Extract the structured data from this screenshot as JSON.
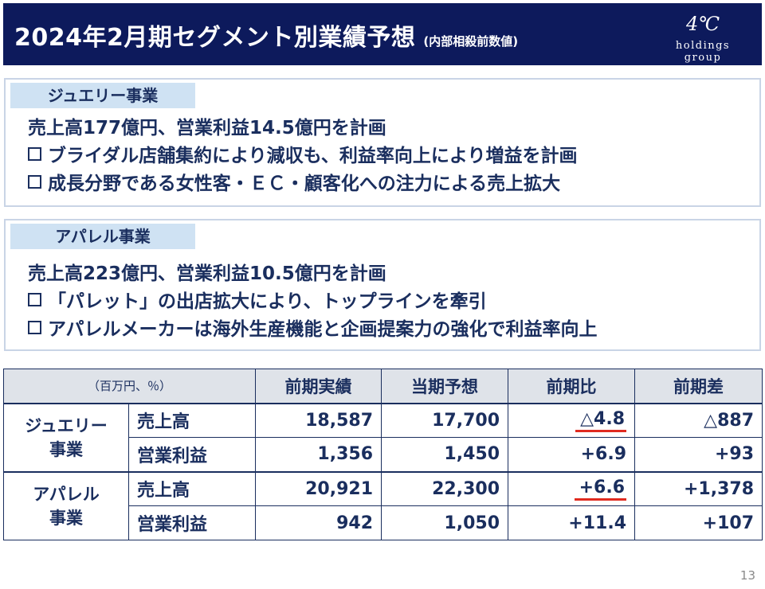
{
  "header": {
    "title": "2024年2月期セグメント別業績予想",
    "subtitle": "(内部相殺前数値)",
    "logo_mark": "4℃",
    "logo_text": "holdings group"
  },
  "jewelry": {
    "label": "ジュエリー事業",
    "lines": [
      "売上高177億円、営業利益14.5億円を計画",
      "ブライダル店舗集約により減収も、利益率向上により増益を計画",
      "成長分野である女性客・ＥＣ・顧客化への注力による売上拡大"
    ]
  },
  "apparel": {
    "label": "アパレル事業",
    "lines": [
      "売上高223億円、営業利益10.5億円を計画",
      "「パレット」の出店拡大により、トップラインを牽引",
      "アパレルメーカーは海外生産機能と企画提案力の強化で利益率向上"
    ]
  },
  "table": {
    "unit": "（百万円、％）",
    "headers": [
      "前期実績",
      "当期予想",
      "前期比",
      "前期差"
    ],
    "segments": [
      {
        "name_line1": "ジュエリー",
        "name_line2": "事業",
        "rows": [
          {
            "item": "売上高",
            "prev": "18,587",
            "forecast": "17,700",
            "ratio": "△4.8",
            "diff": "△887"
          },
          {
            "item": "営業利益",
            "prev": "1,356",
            "forecast": "1,450",
            "ratio": "+6.9",
            "diff": "+93"
          }
        ]
      },
      {
        "name_line1": "アパレル",
        "name_line2": "事業",
        "rows": [
          {
            "item": "売上高",
            "prev": "20,921",
            "forecast": "22,300",
            "ratio": "+6.6",
            "diff": "+1,378"
          },
          {
            "item": "営業利益",
            "prev": "942",
            "forecast": "1,050",
            "ratio": "+11.4",
            "diff": "+107"
          }
        ]
      }
    ]
  },
  "colors": {
    "header_bg": "#0d1a5c",
    "text": "#1a2e5e",
    "label_bg": "#cfe2f3",
    "highlight": "#e02b20"
  },
  "page_number": "13"
}
